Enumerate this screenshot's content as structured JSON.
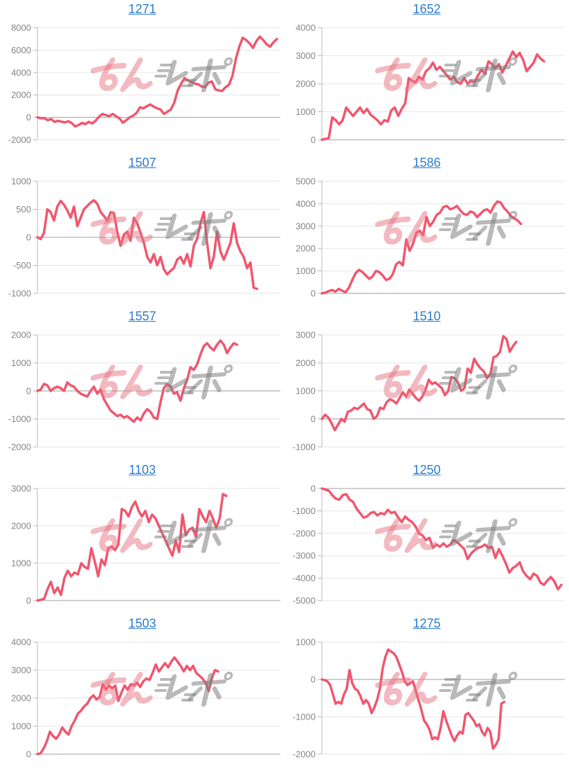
{
  "page": {
    "background": "#ffffff"
  },
  "styles": {
    "line_color": "#f0566e",
    "link_color": "#2b7ad0",
    "axis_label_color": "#848484",
    "gridline_color": "#e6e6e6",
    "zero_line_color": "#9e9e9e",
    "axis_line_color": "#b9b9b9"
  },
  "watermark": {
    "text": "みんレポ",
    "pink_text": "みん",
    "gray_text": "レポ",
    "pink_color": "rgba(229,115,130,0.5)",
    "gray_color": "rgba(128,128,128,0.55)"
  },
  "chart_data": [
    {
      "type": "line",
      "title": "1271",
      "ylim": [
        -2000,
        8000
      ],
      "yticks": [
        8000,
        6000,
        4000,
        2000,
        0,
        -2000
      ],
      "xlim": [
        0,
        71
      ],
      "grid": true,
      "legend": "none",
      "values": [
        0,
        -80,
        -60,
        -250,
        -150,
        -400,
        -300,
        -380,
        -450,
        -350,
        -500,
        -800,
        -700,
        -500,
        -600,
        -400,
        -550,
        -300,
        50,
        300,
        200,
        100,
        300,
        100,
        -100,
        -480,
        -250,
        0,
        150,
        400,
        900,
        800,
        1000,
        1150,
        950,
        800,
        700,
        300,
        500,
        700,
        1300,
        2400,
        3000,
        3500,
        3300,
        3150,
        3000,
        2950,
        2750,
        2700,
        3100,
        3200,
        2500,
        2400,
        2350,
        2700,
        2900,
        3700,
        5200,
        6300,
        7100,
        6900,
        6600,
        6200,
        6800,
        7200,
        6900,
        6500,
        6300,
        6700,
        7000
      ]
    },
    {
      "type": "line",
      "title": "1652",
      "ylim": [
        0,
        4000
      ],
      "yticks": [
        4000,
        3000,
        2000,
        1000,
        0
      ],
      "xlim": [
        0,
        70
      ],
      "grid": true,
      "legend": "none",
      "values": [
        0,
        30,
        60,
        800,
        700,
        550,
        700,
        1150,
        1000,
        850,
        1000,
        1150,
        950,
        1100,
        900,
        800,
        700,
        550,
        700,
        650,
        1050,
        1150,
        850,
        1100,
        1300,
        2200,
        2100,
        2050,
        2250,
        2150,
        2450,
        2550,
        2750,
        2500,
        2600,
        2450,
        2300,
        2150,
        2250,
        2050,
        2000,
        2200,
        2000,
        2100,
        2050,
        2300,
        2500,
        2350,
        2800,
        2700,
        2550,
        2700,
        2400,
        2650,
        2900,
        3150,
        2950,
        3100,
        2850,
        2450,
        2600,
        2750,
        3050,
        2900,
        2800
      ]
    },
    {
      "type": "line",
      "title": "1507",
      "ylim": [
        -1000,
        1000
      ],
      "yticks": [
        1000,
        500,
        0,
        -500,
        -1000
      ],
      "xlim": [
        0,
        73
      ],
      "grid": true,
      "legend": "none",
      "values": [
        0,
        -30,
        80,
        500,
        450,
        300,
        550,
        650,
        580,
        480,
        350,
        550,
        200,
        350,
        500,
        560,
        620,
        660,
        600,
        450,
        380,
        300,
        450,
        430,
        100,
        -150,
        50,
        100,
        -60,
        350,
        250,
        80,
        -100,
        -350,
        -450,
        -300,
        -500,
        -350,
        -570,
        -660,
        -600,
        -550,
        -400,
        -350,
        -470,
        -300,
        -520,
        -150,
        -30,
        250,
        450,
        -100,
        -550,
        -350,
        100,
        -250,
        -400,
        -250,
        -100,
        250,
        -100,
        -250,
        -350,
        -550,
        -450,
        -900,
        -920
      ]
    },
    {
      "type": "line",
      "title": "1586",
      "ylim": [
        0,
        5000
      ],
      "yticks": [
        5000,
        4000,
        3000,
        2000,
        1000,
        0
      ],
      "xlim": [
        0,
        72
      ],
      "grid": true,
      "legend": "none",
      "values": [
        0,
        30,
        100,
        150,
        80,
        200,
        120,
        50,
        250,
        600,
        900,
        1050,
        950,
        800,
        650,
        750,
        1000,
        950,
        800,
        600,
        650,
        850,
        1300,
        1400,
        1250,
        2400,
        1900,
        2200,
        2700,
        2800,
        2600,
        3400,
        3000,
        3200,
        3500,
        3600,
        3850,
        3900,
        3750,
        3800,
        3900,
        3700,
        3550,
        3500,
        3650,
        3600,
        3400,
        3550,
        3700,
        3750,
        3600,
        3900,
        4100,
        4050,
        3800,
        3650,
        3450,
        3350,
        3250,
        3100
      ]
    },
    {
      "type": "line",
      "title": "1557",
      "ylim": [
        -2000,
        2000
      ],
      "yticks": [
        2000,
        1000,
        0,
        -1000,
        -2000
      ],
      "xlim": [
        0,
        73
      ],
      "grid": true,
      "legend": "none",
      "values": [
        0,
        50,
        250,
        200,
        0,
        100,
        150,
        100,
        0,
        300,
        200,
        150,
        0,
        -100,
        -150,
        -200,
        0,
        150,
        -100,
        50,
        -300,
        -500,
        -700,
        -800,
        -900,
        -850,
        -950,
        -900,
        -1000,
        -1100,
        -950,
        -1050,
        -800,
        -650,
        -750,
        -950,
        -1000,
        -400,
        100,
        250,
        150,
        -100,
        -50,
        -350,
        100,
        400,
        850,
        750,
        950,
        1300,
        1600,
        1700,
        1550,
        1450,
        1650,
        1800,
        1650,
        1350,
        1550,
        1700,
        1650
      ]
    },
    {
      "type": "line",
      "title": "1510",
      "ylim": [
        -1000,
        3000
      ],
      "yticks": [
        3000,
        2000,
        1000,
        0,
        -1000
      ],
      "xlim": [
        0,
        75
      ],
      "grid": true,
      "legend": "none",
      "values": [
        0,
        150,
        50,
        -150,
        -400,
        -200,
        0,
        -100,
        250,
        300,
        400,
        350,
        450,
        550,
        350,
        300,
        0,
        100,
        400,
        350,
        600,
        700,
        650,
        550,
        750,
        950,
        800,
        1050,
        900,
        750,
        650,
        800,
        1050,
        1400,
        1250,
        1300,
        1200,
        1100,
        850,
        1000,
        1500,
        1450,
        1300,
        1000,
        1100,
        1800,
        1650,
        2150,
        1950,
        1800,
        1700,
        1450,
        1600,
        2200,
        2250,
        2400,
        2950,
        2850,
        2400,
        2600,
        2750
      ]
    },
    {
      "type": "line",
      "title": "1103",
      "ylim": [
        0,
        3000
      ],
      "yticks": [
        3000,
        2000,
        1000,
        0
      ],
      "xlim": [
        0,
        72
      ],
      "grid": true,
      "legend": "none",
      "values": [
        0,
        20,
        50,
        300,
        500,
        200,
        350,
        150,
        600,
        800,
        650,
        750,
        700,
        1000,
        900,
        850,
        1400,
        1050,
        650,
        1100,
        950,
        1400,
        1450,
        1350,
        1500,
        2450,
        2400,
        2250,
        2500,
        2650,
        2400,
        2250,
        2400,
        2100,
        2300,
        2200,
        2000,
        1800,
        1600,
        1400,
        1200,
        1600,
        1300,
        2300,
        1750,
        1900,
        1950,
        1700,
        2450,
        2250,
        2100,
        2400,
        2200,
        1950,
        2200,
        2850,
        2800
      ]
    },
    {
      "type": "line",
      "title": "1250",
      "ylim": [
        -5000,
        0
      ],
      "yticks": [
        0,
        -1000,
        -2000,
        -3000,
        -4000,
        -5000
      ],
      "xlim": [
        0,
        70
      ],
      "grid": true,
      "legend": "none",
      "values": [
        0,
        -50,
        -100,
        -300,
        -450,
        -500,
        -300,
        -250,
        -500,
        -600,
        -900,
        -1100,
        -1300,
        -1250,
        -1100,
        -1050,
        -1200,
        -1100,
        -1150,
        -950,
        -1100,
        -1050,
        -1300,
        -1500,
        -1250,
        -1400,
        -1500,
        -1700,
        -2000,
        -2100,
        -2300,
        -2200,
        -2650,
        -2500,
        -2600,
        -2450,
        -2600,
        -2500,
        -2300,
        -2400,
        -2550,
        -2700,
        -3150,
        -2900,
        -2750,
        -2650,
        -2600,
        -2500,
        -2650,
        -2600,
        -3100,
        -2700,
        -3000,
        -3350,
        -3750,
        -3550,
        -3450,
        -3300,
        -3700,
        -3900,
        -4050,
        -3800,
        -3900,
        -4200,
        -4300,
        -4100,
        -3950,
        -4150,
        -4500,
        -4300
      ]
    },
    {
      "type": "line",
      "title": "1503",
      "ylim": [
        0,
        4000
      ],
      "yticks": [
        4000,
        3000,
        2000,
        1000,
        0
      ],
      "xlim": [
        0,
        78
      ],
      "grid": true,
      "legend": "none",
      "values": [
        0,
        30,
        200,
        450,
        800,
        650,
        550,
        700,
        950,
        800,
        700,
        1000,
        1200,
        1450,
        1550,
        1700,
        1800,
        2000,
        2100,
        1950,
        2050,
        2500,
        2300,
        2450,
        2350,
        2450,
        1900,
        2200,
        2450,
        2300,
        2500,
        2450,
        2550,
        2400,
        2600,
        2700,
        2650,
        2900,
        3200,
        2950,
        3100,
        3250,
        3100,
        3300,
        3450,
        3300,
        3150,
        2950,
        3150,
        3000,
        3150,
        2900,
        2800,
        2700,
        2550,
        2250,
        2700,
        3000,
        2950
      ]
    },
    {
      "type": "line",
      "title": "1275",
      "ylim": [
        -2000,
        1000
      ],
      "yticks": [
        1000,
        0,
        -1000,
        -2000
      ],
      "xlim": [
        0,
        88
      ],
      "grid": true,
      "legend": "none",
      "values": [
        0,
        -20,
        -50,
        -150,
        -400,
        -650,
        -600,
        -650,
        -400,
        -250,
        250,
        -100,
        -250,
        -300,
        -450,
        -650,
        -550,
        -650,
        -900,
        -750,
        -550,
        -250,
        300,
        600,
        800,
        750,
        700,
        600,
        400,
        200,
        -50,
        -150,
        -100,
        -50,
        -300,
        -550,
        -800,
        -1100,
        -1200,
        -1350,
        -1600,
        -1550,
        -1600,
        -1300,
        -850,
        -1100,
        -1300,
        -1500,
        -1650,
        -1500,
        -1400,
        -1450,
        -950,
        -900,
        -1000,
        -1100,
        -1250,
        -1200,
        -1400,
        -1500,
        -1300,
        -1400,
        -1850,
        -1750,
        -1600,
        -650,
        -600
      ]
    }
  ]
}
